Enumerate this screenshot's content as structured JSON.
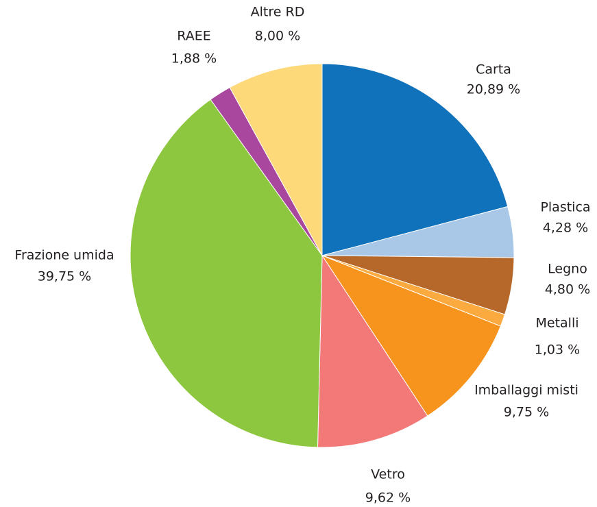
{
  "chart_data": {
    "type": "pie",
    "categories": [
      "Carta",
      "Plastica",
      "Legno",
      "Metalli",
      "Imballaggi misti",
      "Vetro",
      "Frazione umida",
      "RAEE",
      "Altre RD"
    ],
    "values": [
      20.89,
      4.28,
      4.8,
      1.03,
      9.75,
      9.62,
      39.75,
      1.88,
      8.0
    ],
    "value_labels": [
      "20,89 %",
      "4,28 %",
      "4,80 %",
      "1,03 %",
      "9,75 %",
      "9,62 %",
      "39,75 %",
      "1,88 %",
      "8,00 %"
    ],
    "colors": [
      "#1172bc",
      "#a9c8e8",
      "#b5682a",
      "#fbaa3f",
      "#f7941d",
      "#f37878",
      "#8dc63f",
      "#a8479d",
      "#fdd979"
    ]
  }
}
